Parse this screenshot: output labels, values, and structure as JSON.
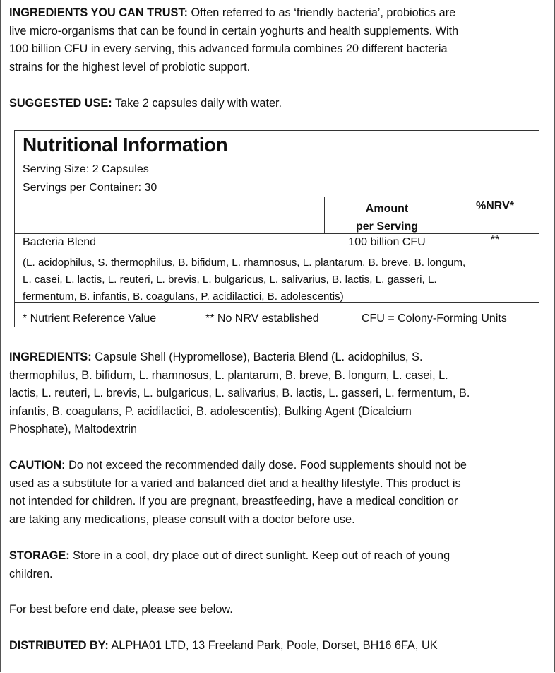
{
  "intro": {
    "label": "INGREDIENTS YOU CAN TRUST:",
    "lines": [
      " Often referred to as ‘friendly bacteria’, probiotics are",
      "live micro-organisms that can be found in certain yoghurts and health supplements. With",
      "100 billion CFU in every serving, this advanced formula combines 20 different bacteria",
      "strains for the highest level of probiotic support."
    ]
  },
  "suggested_use": {
    "label": "SUGGESTED USE:",
    "lines": [
      " Take 2 capsules daily with water."
    ]
  },
  "nutrition": {
    "title": "Nutritional Information",
    "serving_size": "Serving Size: 2 Capsules",
    "servings_per_container": "Servings per Container: 30",
    "col_amount": [
      "Amount",
      "per Serving"
    ],
    "col_nrv": "%NRV*",
    "row": {
      "name": "Bacteria Blend",
      "amount": "100 billion CFU",
      "nrv": "**",
      "detail": [
        "(L. acidophilus, S. thermophilus, B. bifidum, L. rhamnosus, L. plantarum, B. breve, B. longum,",
        "L. casei, L. lactis, L. reuteri, L. brevis, L. bulgaricus, L. salivarius, B. lactis, L. gasseri, L.",
        "fermentum, B. infantis, B. coagulans, P. acidilactici, B. adolescentis)"
      ]
    },
    "footnotes": [
      "* Nutrient Reference Value",
      "** No NRV established",
      "CFU = Colony-Forming Units"
    ]
  },
  "ingredients": {
    "label": "INGREDIENTS:",
    "lines": [
      " Capsule Shell (Hypromellose), Bacteria Blend (L. acidophilus, S.",
      "thermophilus, B. bifidum, L. rhamnosus, L. plantarum, B. breve, B. longum, L. casei, L.",
      "lactis, L. reuteri, L. brevis, L. bulgaricus, L. salivarius, B. lactis, L. gasseri, L. fermentum, B.",
      "infantis, B. coagulans, P. acidilactici, B. adolescentis), Bulking Agent (Dicalcium",
      "Phosphate), Maltodextrin"
    ]
  },
  "caution": {
    "label": "CAUTION:",
    "lines": [
      " Do not exceed the recommended daily dose. Food supplements should not be",
      "used as a substitute for a varied and balanced diet and a healthy lifestyle. This product is",
      "not intended for children. If you are pregnant, breastfeeding, have a medical condition or",
      "are taking any medications, please consult with a doctor before use."
    ]
  },
  "storage": {
    "label": "STORAGE:",
    "lines": [
      " Store in a cool, dry place out of direct sunlight. Keep out of reach of young",
      "children."
    ]
  },
  "best_before": "For best before end date, please see below.",
  "distributed": {
    "label": "DISTRIBUTED BY:",
    "lines": [
      " ALPHA01 LTD, 13 Freeland Park, Poole, Dorset, BH16 6FA, UK"
    ]
  }
}
